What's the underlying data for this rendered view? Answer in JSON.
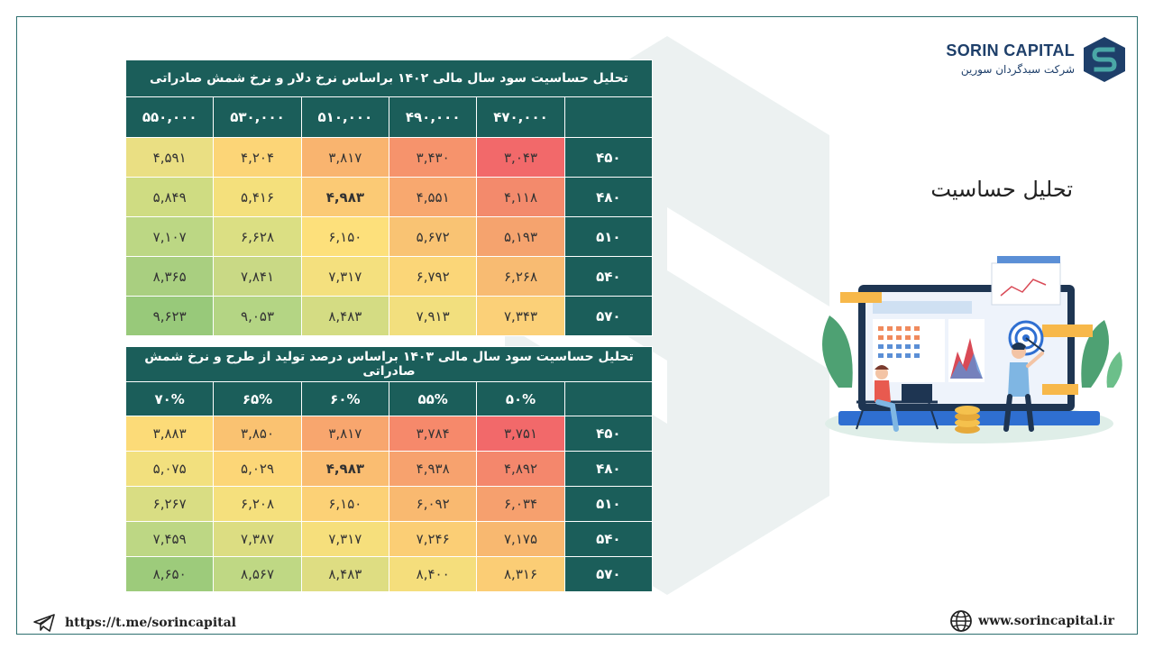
{
  "brand": {
    "name": "SORIN CAPITAL",
    "subtitle": "شرکت سبدگردان سورین",
    "colors": {
      "primary": "#1b5e5a",
      "navy": "#1e3f6a"
    }
  },
  "section_title": "تحلیل حساسیت",
  "table1": {
    "title": "تحلیل حساسیت سود سال مالی ۱۴۰۲ براساس نرخ دلار و نرخ شمش صادراتی",
    "columns": [
      "۴۷۰,۰۰۰",
      "۴۹۰,۰۰۰",
      "۵۱۰,۰۰۰",
      "۵۳۰,۰۰۰",
      "۵۵۰,۰۰۰"
    ],
    "rows": [
      {
        "label": "۴۵۰",
        "values": [
          "۳,۰۴۳",
          "۳,۴۳۰",
          "۳,۸۱۷",
          "۴,۲۰۴",
          "۴,۵۹۱"
        ]
      },
      {
        "label": "۴۸۰",
        "values": [
          "۴,۱۱۸",
          "۴,۵۵۱",
          "۴,۹۸۳",
          "۵,۴۱۶",
          "۵,۸۴۹"
        ]
      },
      {
        "label": "۵۱۰",
        "values": [
          "۵,۱۹۳",
          "۵,۶۷۲",
          "۶,۱۵۰",
          "۶,۶۲۸",
          "۷,۱۰۷"
        ]
      },
      {
        "label": "۵۴۰",
        "values": [
          "۶,۲۶۸",
          "۶,۷۹۲",
          "۷,۳۱۷",
          "۷,۸۴۱",
          "۸,۳۶۵"
        ]
      },
      {
        "label": "۵۷۰",
        "values": [
          "۷,۳۴۳",
          "۷,۹۱۳",
          "۸,۴۸۳",
          "۹,۰۵۳",
          "۹,۶۲۳"
        ]
      }
    ],
    "bold_cell": [
      1,
      2
    ],
    "cell_colors": [
      [
        "#f2696a",
        "#f6936c",
        "#f9b46f",
        "#fcd577",
        "#eadf83"
      ],
      [
        "#f38a6c",
        "#f8a86f",
        "#fbca75",
        "#f4e07c",
        "#cfdc82"
      ],
      [
        "#f5a36e",
        "#f9c373",
        "#fde07b",
        "#dbdf83",
        "#bcd784"
      ],
      [
        "#f8bb72",
        "#fbd678",
        "#f4e07e",
        "#c9d985",
        "#a9cf80"
      ],
      [
        "#fbd078",
        "#f2df7e",
        "#d4dc83",
        "#b4d584",
        "#98c97a"
      ]
    ]
  },
  "table2": {
    "title": "تحلیل حساسیت سود سال مالی ۱۴۰۳ براساس درصد تولید از طرح و نرخ شمش صادراتی",
    "columns": [
      "۵۰%",
      "۵۵%",
      "۶۰%",
      "۶۵%",
      "۷۰%"
    ],
    "rows": [
      {
        "label": "۴۵۰",
        "values": [
          "۳,۷۵۱",
          "۳,۷۸۴",
          "۳,۸۱۷",
          "۳,۸۵۰",
          "۳,۸۸۳"
        ]
      },
      {
        "label": "۴۸۰",
        "values": [
          "۴,۸۹۲",
          "۴,۹۳۸",
          "۴,۹۸۳",
          "۵,۰۲۹",
          "۵,۰۷۵"
        ]
      },
      {
        "label": "۵۱۰",
        "values": [
          "۶,۰۳۴",
          "۶,۰۹۲",
          "۶,۱۵۰",
          "۶,۲۰۸",
          "۶,۲۶۷"
        ]
      },
      {
        "label": "۵۴۰",
        "values": [
          "۷,۱۷۵",
          "۷,۲۴۶",
          "۷,۳۱۷",
          "۷,۳۸۷",
          "۷,۴۵۹"
        ]
      },
      {
        "label": "۵۷۰",
        "values": [
          "۸,۳۱۶",
          "۸,۴۰۰",
          "۸,۴۸۳",
          "۸,۵۶۷",
          "۸,۶۵۰"
        ]
      }
    ],
    "bold_cell": [
      1,
      2
    ],
    "cell_colors": [
      [
        "#f2696a",
        "#f6896b",
        "#f8a66e",
        "#fac271",
        "#fcdb78"
      ],
      [
        "#f4876c",
        "#f7a26e",
        "#fabd71",
        "#fcd677",
        "#f2e07e"
      ],
      [
        "#f6a06e",
        "#f9b970",
        "#fcd176",
        "#f5e07d",
        "#d9dd83"
      ],
      [
        "#f8b870",
        "#fbce75",
        "#f6df7c",
        "#dcdd82",
        "#bdd784"
      ],
      [
        "#fbcd75",
        "#f5de7c",
        "#dedd82",
        "#bfd884",
        "#9dcb7b"
      ]
    ]
  },
  "footer": {
    "telegram": "https://t.me/sorincapital",
    "website": "www.sorincapital.ir",
    "telegram_icon": "telegram-icon",
    "globe_icon": "globe-icon"
  }
}
